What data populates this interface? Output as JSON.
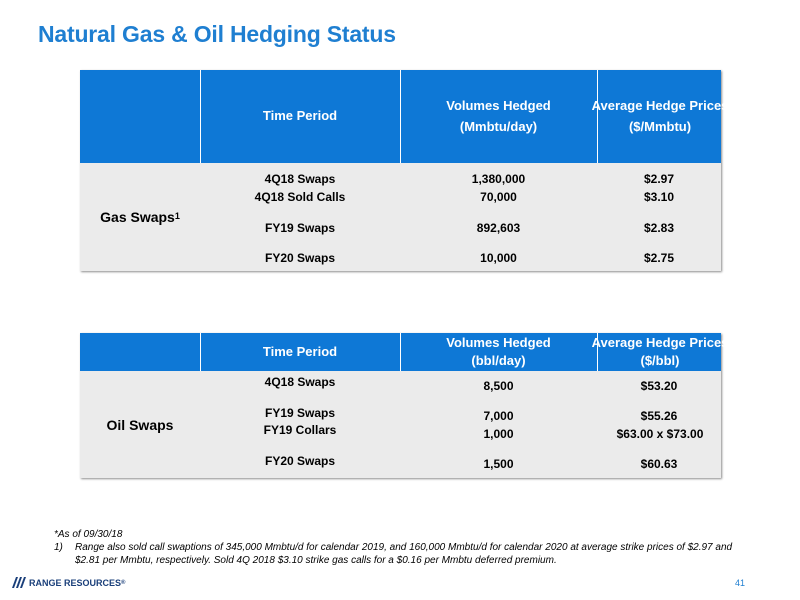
{
  "title": "Natural Gas & Oil Hedging Status",
  "gas_table": {
    "headers": {
      "time_period": "Time Period",
      "volumes_line1": "Volumes Hedged",
      "volumes_line2": "(Mmbtu/day)",
      "prices_line1": "Average Hedge Prices",
      "prices_line2": "($/Mmbtu)"
    },
    "row_label": "Gas Swaps",
    "row_label_sup": "1",
    "rows": [
      {
        "period": "4Q18 Swaps",
        "volume": "1,380,000",
        "price": "$2.97"
      },
      {
        "period": "4Q18 Sold Calls",
        "volume": "70,000",
        "price": "$3.10"
      },
      {
        "period": "FY19 Swaps",
        "volume": "892,603",
        "price": "$2.83"
      },
      {
        "period": "FY20 Swaps",
        "volume": "10,000",
        "price": "$2.75"
      }
    ]
  },
  "oil_table": {
    "headers": {
      "time_period": "Time Period",
      "volumes_line1": "Volumes Hedged",
      "volumes_line2": "(bbl/day)",
      "prices_line1": "Average Hedge Prices",
      "prices_line2": "($/bbl)"
    },
    "row_label": "Oil Swaps",
    "rows": [
      {
        "period": "4Q18 Swaps",
        "volume": "8,500",
        "price": "$53.20"
      },
      {
        "period": "FY19 Swaps",
        "volume": "7,000",
        "price": "$55.26"
      },
      {
        "period": "FY19 Collars",
        "volume": "1,000",
        "price": "$63.00 x $73.00"
      },
      {
        "period": "FY20 Swaps",
        "volume": "1,500",
        "price": "$60.63"
      }
    ]
  },
  "footnotes": {
    "as_of": "*As of 09/30/18",
    "note1_number": "1)",
    "note1_text": "Range also sold call swaptions of 345,000 Mmbtu/d for calendar 2019, and 160,000 Mmbtu/d for calendar 2020 at average strike prices of $2.97 and $2.81 per Mmbtu, respectively. Sold 4Q 2018 $3.10 strike gas calls for a $0.16 per Mmbtu deferred premium."
  },
  "logo_text": "RANGE RESOURCES",
  "logo_mark": "®",
  "page_number": "41",
  "colors": {
    "accent": "#1f7fd1",
    "header_fill": "#0e78d6",
    "row_fill": "#ebebeb"
  }
}
